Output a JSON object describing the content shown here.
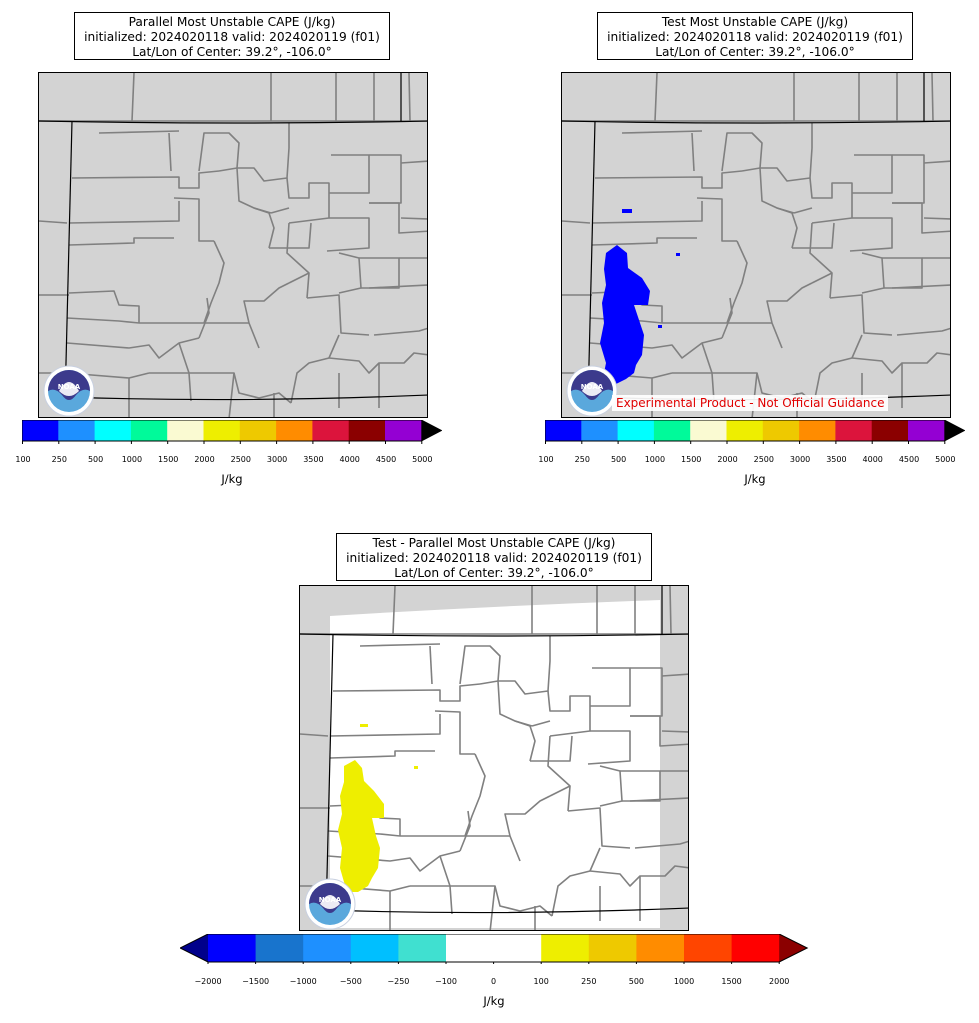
{
  "panels": {
    "parallel": {
      "title_line1": "Parallel Most Unstable CAPE (J/kg)",
      "title_line2": "initialized: 2024020118 valid: 2024020119 (f01)",
      "title_line3": "Lat/Lon of Center: 39.2°, -106.0°"
    },
    "test": {
      "title_line1": "Test Most Unstable CAPE (J/kg)",
      "title_line2": "initialized: 2024020118 valid: 2024020119 (f01)",
      "title_line3": "Lat/Lon of Center: 39.2°, -106.0°",
      "disclaimer": "Experimental Product - Not Official Guidance"
    },
    "difference": {
      "title_line1": "Test - Parallel Most Unstable CAPE (J/kg)",
      "title_line2": "initialized: 2024020118 valid: 2024020119 (f01)",
      "title_line3": "Lat/Lon of Center: 39.2°, -106.0°"
    }
  },
  "logo_text": "NOAA",
  "cape_colorbar": {
    "unit": "J/kg",
    "ticks": [
      "100",
      "250",
      "500",
      "1000",
      "1500",
      "2000",
      "2500",
      "3000",
      "3500",
      "4000",
      "4500",
      "5000"
    ],
    "colors": [
      "#0000ff",
      "#1e90ff",
      "#00ffff",
      "#00fa9a",
      "#fafad2",
      "#eeee00",
      "#eec900",
      "#ff8c00",
      "#dc143c",
      "#8b0000",
      "#9400d3"
    ],
    "extend_color": "#000000"
  },
  "diff_colorbar": {
    "unit": "J/kg",
    "ticks": [
      "−2000",
      "−1500",
      "−1000",
      "−500",
      "−250",
      "−100",
      "0",
      "100",
      "250",
      "500",
      "1000",
      "1500",
      "2000"
    ],
    "colors": [
      "#0000ff",
      "#1874cd",
      "#1e90ff",
      "#00bfff",
      "#40e0d0",
      "#ffffff",
      "#ffffff",
      "#eeee00",
      "#eec900",
      "#ff8c00",
      "#ff4500",
      "#ff0000"
    ],
    "extend_low": "#00008b",
    "extend_high": "#8b0000"
  },
  "colors": {
    "land": "#d3d3d3",
    "county_line": "#808080",
    "state_line": "#000000",
    "test_cape": "#0000ff",
    "diff_cape": "#eeee00",
    "disclaimer_text": "#e00000"
  }
}
